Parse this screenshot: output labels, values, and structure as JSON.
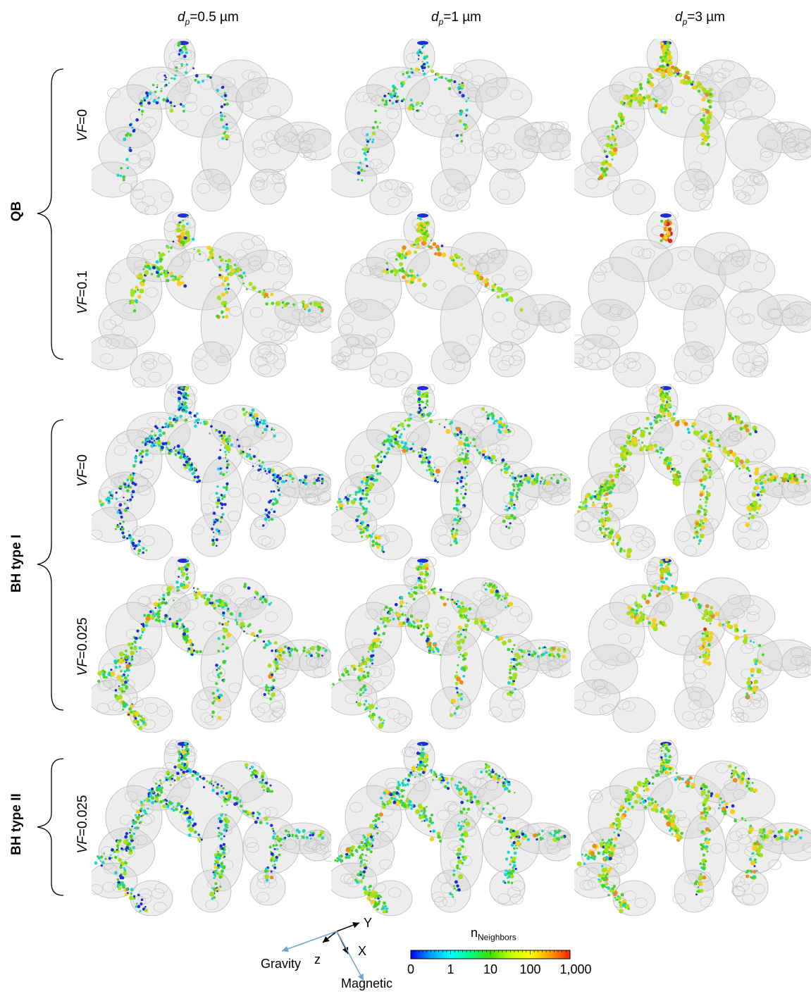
{
  "columns": [
    {
      "symbol": "d",
      "subscript": "p",
      "value": "=0.5 µm"
    },
    {
      "symbol": "d",
      "subscript": "p",
      "value": "=1 µm"
    },
    {
      "symbol": "d",
      "subscript": "p",
      "value": "=3 µm"
    }
  ],
  "groups": [
    {
      "label": "QB"
    },
    {
      "label": "BH type I"
    },
    {
      "label": "BH type II"
    }
  ],
  "rows": [
    {
      "vf_symbol": "VF",
      "vf_value": "=0",
      "group": 0
    },
    {
      "vf_symbol": "VF",
      "vf_value": "=0.1",
      "group": 0
    },
    {
      "vf_symbol": "VF",
      "vf_value": "=0",
      "group": 1
    },
    {
      "vf_symbol": "VF",
      "vf_value": "=0.025",
      "group": 1
    },
    {
      "vf_symbol": "VF",
      "vf_value": "=0.025",
      "group": 2
    }
  ],
  "axes": {
    "y": "Y",
    "x": "X",
    "z": "z",
    "gravity": "Gravity",
    "magnetic": "Magnetic"
  },
  "colorbar": {
    "title": "n",
    "title_sub": "Neighbors",
    "ticks": [
      "0",
      "1",
      "10",
      "100",
      "1,000"
    ],
    "colors": [
      "#0000ff",
      "#00a0ff",
      "#00ffff",
      "#00ff80",
      "#40e000",
      "#c0ff00",
      "#ffff00",
      "#ffa000",
      "#ff2000"
    ]
  }
}
